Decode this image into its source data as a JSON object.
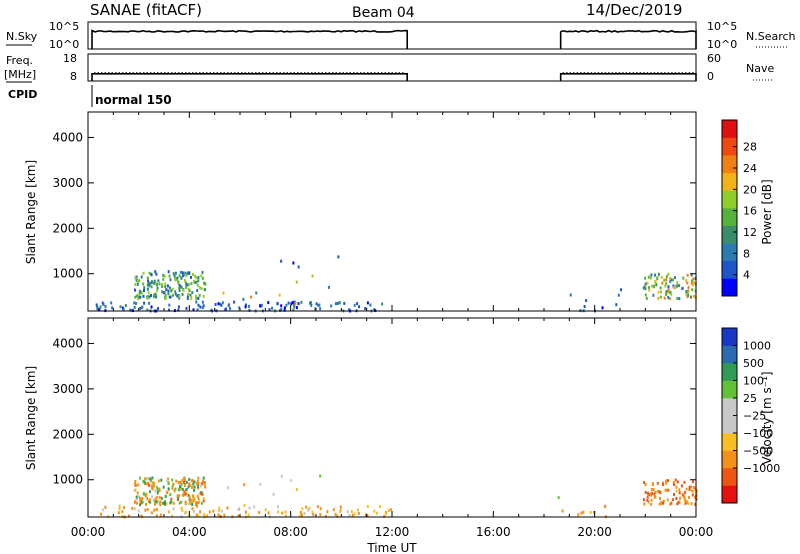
{
  "header": {
    "station": "SANAE (fitACF)",
    "beam": "Beam 04",
    "date": "14/Dec/2019"
  },
  "left_labels": {
    "nsky": "N.Sky",
    "freq": "Freq.",
    "mhz": "[MHz]",
    "cpid": "CPID"
  },
  "right_labels": {
    "nsearch": "N.Search",
    "nave": "Nave"
  },
  "cpid_text": "normal 150",
  "axis": {
    "xlabel": "Time UT",
    "ylabel": "Slant Range [km]"
  },
  "colors": {
    "line": "#000000",
    "power_scale": [
      "#0000ff",
      "#1e55c8",
      "#2b7ab0",
      "#3a8d6a",
      "#55b23a",
      "#8fcf2a",
      "#f2b31a",
      "#f07f14",
      "#ee4a10",
      "#e01010"
    ],
    "velocity_scale": [
      "#e51010",
      "#ef5512",
      "#f59118",
      "#f8bf22",
      "#c8c8c8",
      "#c8c8c8",
      "#62c236",
      "#2f9b55",
      "#2a6bb0",
      "#1a38c8"
    ]
  },
  "chart_data": [
    {
      "type": "line",
      "name": "noise-panel",
      "y_left_ticks": [
        "10^5",
        "10^0"
      ],
      "y_right_ticks": [
        "10^5",
        "10^0"
      ],
      "segments_hours": [
        [
          0.0,
          12.6
        ],
        [
          18.5,
          24.0
        ]
      ],
      "series": [
        {
          "name": "N.Sky",
          "level_log10": 3.6
        },
        {
          "name": "N.Search",
          "level_log10": 3.6
        }
      ]
    },
    {
      "type": "line",
      "name": "freq-nave-panel",
      "y_left_ticks": [
        "18",
        "8"
      ],
      "y_right_ticks": [
        "60",
        "0"
      ],
      "segments_hours": [
        [
          0.0,
          12.6
        ],
        [
          18.5,
          24.0
        ]
      ],
      "series": [
        {
          "name": "Freq.",
          "value_mhz": 10.0
        },
        {
          "name": "Nave",
          "value": 15
        }
      ]
    },
    {
      "type": "scatter",
      "name": "power-panel",
      "xlim": [
        0,
        24
      ],
      "ylim": [
        180,
        4560
      ],
      "xticks": [
        "00:00",
        "04:00",
        "08:00",
        "12:00",
        "16:00",
        "20:00",
        "00:00"
      ],
      "yticks": [
        1000,
        2000,
        3000,
        4000
      ],
      "colorbar": {
        "label": "Power [dB]",
        "min": 0,
        "max": 33,
        "ticks": [
          4,
          8,
          12,
          16,
          20,
          24,
          28
        ]
      },
      "clusters": [
        {
          "t0": 1.8,
          "t1": 4.6,
          "r0": 450,
          "r1": 1050,
          "v0": 4,
          "v1": 20,
          "n": 170
        },
        {
          "t0": 0.3,
          "t1": 12.0,
          "r0": 180,
          "r1": 380,
          "v0": 2,
          "v1": 12,
          "n": 120
        },
        {
          "t0": 21.9,
          "t1": 24.0,
          "r0": 450,
          "r1": 1000,
          "v0": 6,
          "v1": 26,
          "n": 90
        },
        {
          "t0": 18.5,
          "t1": 21.0,
          "r0": 180,
          "r1": 650,
          "v0": 2,
          "v1": 10,
          "n": 10
        },
        {
          "t0": 5.3,
          "t1": 10.0,
          "r0": 300,
          "r1": 1400,
          "v0": 2,
          "v1": 26,
          "n": 14
        }
      ]
    },
    {
      "type": "scatter",
      "name": "velocity-panel",
      "xlim": [
        0,
        24
      ],
      "ylim": [
        180,
        4560
      ],
      "xticks": [
        "00:00",
        "04:00",
        "08:00",
        "12:00",
        "16:00",
        "20:00",
        "00:00"
      ],
      "yticks": [
        1000,
        2000,
        3000,
        4000
      ],
      "colorbar": {
        "label": "Velocity [m s⁻¹]",
        "tick_labels": [
          "1000",
          "500",
          "100",
          "25",
          "−25",
          "−100",
          "−500",
          "−1000"
        ]
      },
      "clusters": [
        {
          "t0": 1.8,
          "t1": 4.6,
          "r0": 450,
          "r1": 1050,
          "v0": -600,
          "v1": 300,
          "n": 190
        },
        {
          "t0": 0.3,
          "t1": 12.0,
          "r0": 180,
          "r1": 420,
          "v0": -200,
          "v1": 20,
          "n": 110
        },
        {
          "t0": 21.9,
          "t1": 24.0,
          "r0": 450,
          "r1": 1000,
          "v0": -900,
          "v1": -50,
          "n": 90
        },
        {
          "t0": 18.5,
          "t1": 21.0,
          "r0": 180,
          "r1": 650,
          "v0": -200,
          "v1": 50,
          "n": 10
        },
        {
          "t0": 5.3,
          "t1": 10.0,
          "r0": 300,
          "r1": 1400,
          "v0": -150,
          "v1": 50,
          "n": 12
        }
      ]
    }
  ]
}
